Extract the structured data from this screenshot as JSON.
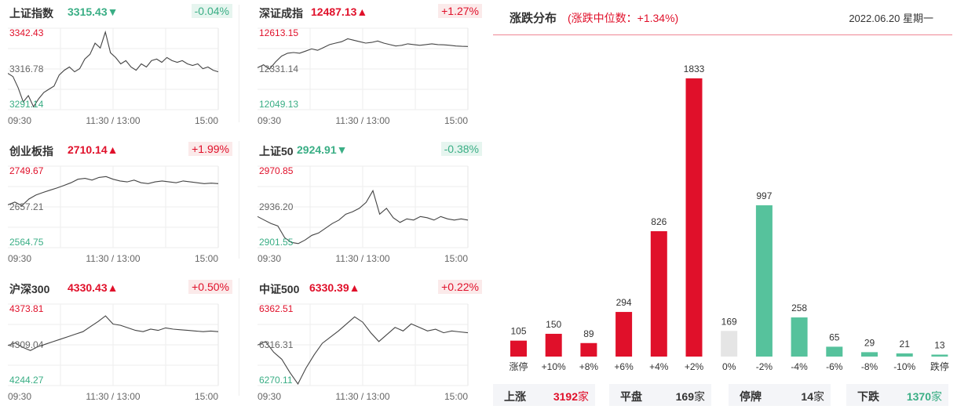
{
  "indices": [
    {
      "name": "上证指数",
      "value": "3315.43",
      "direction": "down",
      "change": "-0.04%",
      "y_top": "3342.43",
      "y_mid": "3316.78",
      "y_bot": "3291.14",
      "x_labels": [
        "09:30",
        "11:30 / 13:00",
        "15:00"
      ],
      "range": [
        3291.14,
        3342.43
      ],
      "series": [
        3314,
        3312,
        3305,
        3296,
        3300,
        3293,
        3298,
        3302,
        3304,
        3306,
        3313,
        3316,
        3318,
        3315,
        3317,
        3323,
        3326,
        3333,
        3330,
        3340,
        3327,
        3324,
        3320,
        3322,
        3318,
        3316,
        3320,
        3318,
        3322,
        3323,
        3321,
        3324,
        3322,
        3321,
        3322,
        3320,
        3319,
        3320,
        3317,
        3318,
        3316,
        3315
      ]
    },
    {
      "name": "深证成指",
      "value": "12487.13",
      "direction": "up",
      "change": "+1.27%",
      "y_top": "12613.15",
      "y_mid": "12331.14",
      "y_bot": "12049.13",
      "x_labels": [
        "09:30",
        "11:30 / 13:00",
        "15:00"
      ],
      "range": [
        12049.13,
        12613.15
      ],
      "series": [
        12340,
        12360,
        12330,
        12380,
        12420,
        12440,
        12445,
        12440,
        12455,
        12470,
        12460,
        12480,
        12500,
        12510,
        12520,
        12540,
        12530,
        12520,
        12510,
        12515,
        12525,
        12510,
        12500,
        12490,
        12495,
        12505,
        12500,
        12495,
        12500,
        12505,
        12500,
        12498,
        12495,
        12490,
        12488,
        12487
      ]
    },
    {
      "name": "创业板指",
      "value": "2710.14",
      "direction": "up",
      "change": "+1.99%",
      "y_top": "2749.67",
      "y_mid": "2657.21",
      "y_bot": "2564.75",
      "x_labels": [
        "09:30",
        "11:30 / 13:00",
        "15:00"
      ],
      "range": [
        2564.75,
        2749.67
      ],
      "series": [
        2662,
        2668,
        2660,
        2675,
        2684,
        2690,
        2695,
        2700,
        2706,
        2712,
        2720,
        2722,
        2718,
        2724,
        2726,
        2720,
        2716,
        2714,
        2718,
        2712,
        2710,
        2714,
        2716,
        2714,
        2712,
        2716,
        2714,
        2712,
        2710,
        2711,
        2710
      ]
    },
    {
      "name": "上证50",
      "value": "2924.91",
      "direction": "down",
      "change": "-0.38%",
      "y_top": "2970.85",
      "y_mid": "2936.20",
      "y_bot": "2901.55",
      "x_labels": [
        "09:30",
        "11:30 / 13:00",
        "15:00"
      ],
      "range": [
        2901.55,
        2970.85
      ],
      "series": [
        2928,
        2925,
        2922,
        2920,
        2910,
        2906,
        2905,
        2908,
        2912,
        2914,
        2918,
        2922,
        2925,
        2930,
        2932,
        2935,
        2940,
        2950,
        2930,
        2935,
        2927,
        2923,
        2926,
        2925,
        2928,
        2927,
        2925,
        2928,
        2926,
        2925,
        2926,
        2925
      ]
    },
    {
      "name": "沪深300",
      "value": "4330.43",
      "direction": "up",
      "change": "+0.50%",
      "y_top": "4373.81",
      "y_mid": "4309.04",
      "y_bot": "4244.27",
      "x_labels": [
        "09:30",
        "11:30 / 13:00",
        "15:00"
      ],
      "range": [
        4244.27,
        4373.81
      ],
      "series": [
        4308,
        4312,
        4305,
        4300,
        4306,
        4310,
        4314,
        4318,
        4322,
        4326,
        4330,
        4338,
        4346,
        4355,
        4342,
        4340,
        4336,
        4332,
        4330,
        4334,
        4332,
        4336,
        4334,
        4333,
        4332,
        4331,
        4330,
        4331,
        4330
      ]
    },
    {
      "name": "中证500",
      "value": "6330.39",
      "direction": "up",
      "change": "+0.22%",
      "y_top": "6362.51",
      "y_mid": "6316.31",
      "y_bot": "6270.11",
      "x_labels": [
        "09:30",
        "11:30 / 13:00",
        "15:00"
      ],
      "range": [
        6270.11,
        6362.51
      ],
      "series": [
        6316,
        6320,
        6308,
        6300,
        6285,
        6272,
        6290,
        6305,
        6318,
        6325,
        6332,
        6340,
        6348,
        6342,
        6330,
        6320,
        6328,
        6336,
        6332,
        6340,
        6336,
        6332,
        6334,
        6330,
        6332,
        6331,
        6330
      ]
    }
  ],
  "distribution": {
    "title": "涨跌分布",
    "subtitle": "(涨跌中位数：+1.34%)",
    "date": "2022.06.20 星期一"
  },
  "chart_data": {
    "type": "bar",
    "categories": [
      "涨停",
      "+10%",
      "+8%",
      "+6%",
      "+4%",
      "+2%",
      "0%",
      "-2%",
      "-4%",
      "-6%",
      "-8%",
      "-10%",
      "跌停"
    ],
    "values": [
      105,
      150,
      89,
      294,
      826,
      1833,
      169,
      997,
      258,
      65,
      29,
      21,
      13
    ],
    "colors": [
      "#e0102a",
      "#e0102a",
      "#e0102a",
      "#e0102a",
      "#e0102a",
      "#e0102a",
      "#e5e5e5",
      "#56c29c",
      "#56c29c",
      "#56c29c",
      "#56c29c",
      "#56c29c",
      "#56c29c"
    ],
    "title": "涨跌分布",
    "xlabel": "",
    "ylabel": "",
    "ylim": [
      0,
      1833
    ]
  },
  "summary": [
    {
      "label": "上涨",
      "value": "3192",
      "unit": "家",
      "color": "#e0102a"
    },
    {
      "label": "平盘",
      "value": "169",
      "unit": "家",
      "color": "#333333"
    },
    {
      "label": "停牌",
      "value": "14",
      "unit": "家",
      "color": "#333333"
    },
    {
      "label": "下跌",
      "value": "1370",
      "unit": "家",
      "color": "#3aae85"
    }
  ]
}
